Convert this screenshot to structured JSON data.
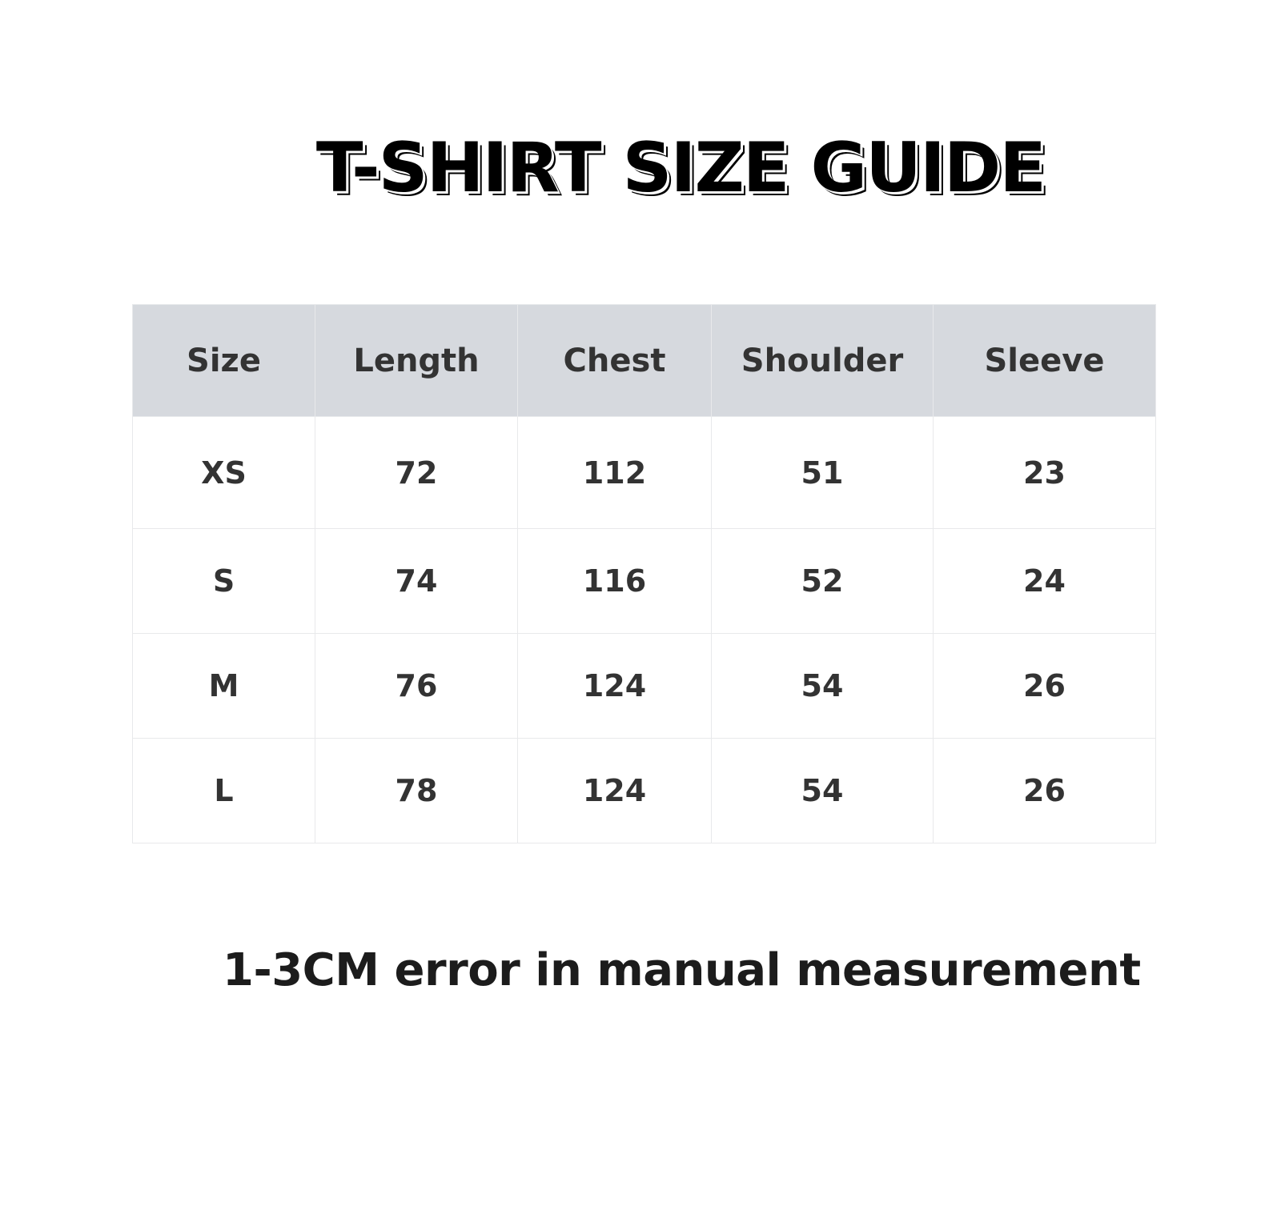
{
  "title": "T-SHIRT SIZE GUIDE",
  "table": {
    "headers": [
      "Size",
      "Length",
      "Chest",
      "Shoulder",
      "Sleeve"
    ],
    "rows": [
      [
        "XS",
        "72",
        "112",
        "51",
        "23"
      ],
      [
        "S",
        "74",
        "116",
        "52",
        "24"
      ],
      [
        "M",
        "76",
        "124",
        "54",
        "26"
      ],
      [
        "L",
        "78",
        "124",
        "54",
        "26"
      ]
    ]
  },
  "note": "1-3CM error in manual measurement",
  "colors": {
    "header_bg": "#d6d9de",
    "text": "#333333",
    "border": "#e8e9eb"
  }
}
